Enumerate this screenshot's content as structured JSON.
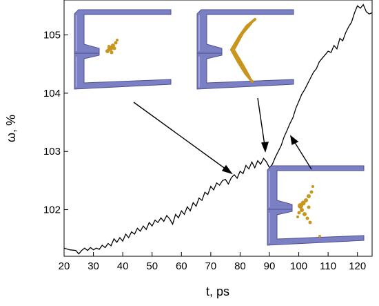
{
  "chart_data": {
    "type": "line",
    "title": "",
    "xlabel": "t, ps",
    "ylabel": "ω, %",
    "xlim": [
      20,
      125
    ],
    "ylim": [
      101.2,
      105.6
    ],
    "xticks": [
      20,
      30,
      40,
      50,
      60,
      70,
      80,
      90,
      100,
      110,
      120
    ],
    "yticks": [
      102,
      103,
      104,
      105
    ],
    "grid": false,
    "series": [
      {
        "color": "#000000",
        "x": [
          20,
          22,
          24,
          25,
          26,
          27,
          28,
          29,
          30,
          31,
          32,
          33,
          34,
          35,
          36,
          37,
          38,
          39,
          40,
          41,
          42,
          43,
          44,
          45,
          46,
          47,
          48,
          49,
          50,
          51,
          52,
          53,
          54,
          55,
          56,
          57,
          58,
          59,
          60,
          61,
          62,
          63,
          64,
          65,
          66,
          67,
          68,
          69,
          70,
          71,
          72,
          73,
          74,
          75,
          76,
          77,
          78,
          79,
          80,
          81,
          82,
          83,
          84,
          85,
          86,
          87,
          88,
          89,
          90,
          91,
          92,
          93,
          94,
          95,
          96,
          97,
          98,
          99,
          100,
          101,
          102,
          103,
          104,
          105,
          106,
          107,
          108,
          109,
          110,
          111,
          112,
          113,
          114,
          115,
          116,
          117,
          118,
          119,
          120,
          121,
          122,
          123,
          124,
          125
        ],
        "y": [
          101.34,
          101.31,
          101.3,
          101.24,
          101.3,
          101.34,
          101.3,
          101.35,
          101.31,
          101.34,
          101.32,
          101.39,
          101.35,
          101.42,
          101.38,
          101.5,
          101.44,
          101.52,
          101.46,
          101.58,
          101.52,
          101.62,
          101.58,
          101.68,
          101.63,
          101.72,
          101.66,
          101.78,
          101.72,
          101.82,
          101.78,
          101.86,
          101.8,
          101.9,
          101.84,
          101.75,
          101.92,
          101.86,
          101.98,
          101.92,
          102.05,
          101.98,
          102.12,
          102.06,
          102.2,
          102.16,
          102.3,
          102.26,
          102.4,
          102.34,
          102.46,
          102.42,
          102.5,
          102.52,
          102.44,
          102.55,
          102.6,
          102.54,
          102.66,
          102.62,
          102.76,
          102.7,
          102.82,
          102.72,
          102.84,
          102.78,
          102.88,
          102.82,
          102.72,
          102.78,
          102.9,
          103.0,
          103.1,
          103.25,
          103.36,
          103.48,
          103.58,
          103.74,
          103.86,
          103.98,
          104.06,
          104.16,
          104.26,
          104.36,
          104.42,
          104.54,
          104.6,
          104.66,
          104.72,
          104.7,
          104.82,
          104.76,
          104.94,
          104.9,
          105.04,
          105.14,
          105.22,
          105.38,
          105.5,
          105.46,
          105.52,
          105.4,
          105.36,
          105.38
        ]
      }
    ],
    "insets": [
      {
        "icon": "crack-atomistic-snapshot"
      },
      {
        "icon": "crack-atomistic-snapshot"
      },
      {
        "icon": "crack-atomistic-snapshot"
      }
    ],
    "colors": {
      "line": "#000000",
      "slab": "#7b7fc4",
      "slab_edge": "#5a5e9e",
      "atoms": "#c8961f"
    }
  }
}
